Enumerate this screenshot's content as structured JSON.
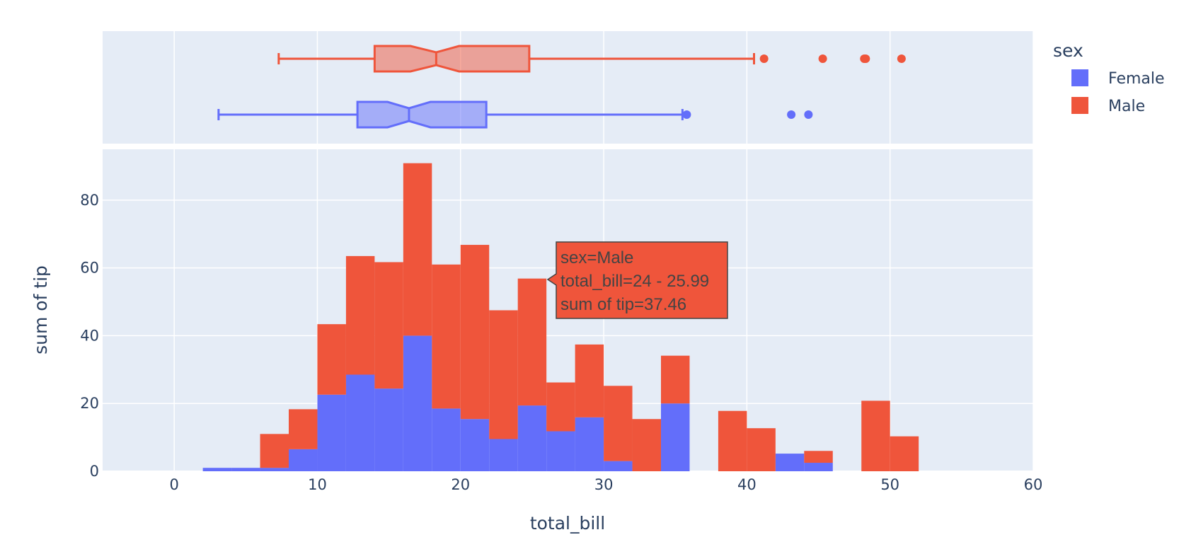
{
  "chart_data": {
    "type": "bar",
    "stacked": true,
    "xlabel": "total_bill",
    "ylabel": "sum of tip",
    "xlim": [
      -5,
      60
    ],
    "ylim": [
      0,
      95
    ],
    "x_ticks": [
      0,
      10,
      20,
      30,
      40,
      50,
      60
    ],
    "y_ticks": [
      0,
      20,
      40,
      60,
      80
    ],
    "grid": true,
    "bin_width": 2,
    "legend": {
      "title": "sex",
      "placement": "right",
      "entries": [
        "Female",
        "Male"
      ]
    },
    "colors": {
      "Female": "#636efa",
      "Male": "#ef553b",
      "plot_bg": "#e5ecf6",
      "grid": "#ffffff",
      "text": "#2a3f5f"
    },
    "series": [
      {
        "name": "Female",
        "bins": [
          2,
          4,
          6,
          8,
          10,
          12,
          14,
          16,
          18,
          20,
          22,
          24,
          26,
          28,
          30,
          34,
          42,
          44
        ],
        "values": [
          1.0,
          1.0,
          1.0,
          6.5,
          22.6,
          28.5,
          24.4,
          40.0,
          18.5,
          15.4,
          9.5,
          19.4,
          11.8,
          15.9,
          3.0,
          20.0,
          5.2,
          2.5
        ]
      },
      {
        "name": "Male",
        "bins": [
          6,
          8,
          10,
          12,
          14,
          16,
          18,
          20,
          22,
          24,
          26,
          28,
          30,
          32,
          34,
          38,
          40,
          44,
          48,
          50
        ],
        "values": [
          10.0,
          11.8,
          20.8,
          35.0,
          37.3,
          50.9,
          42.5,
          51.4,
          38.0,
          37.46,
          14.4,
          21.5,
          22.2,
          15.4,
          14.1,
          17.8,
          12.7,
          3.5,
          20.8,
          10.3
        ]
      }
    ],
    "boxplots": [
      {
        "name": "Male",
        "whisker_low": 7.3,
        "q1": 14.0,
        "median": 18.3,
        "q3": 24.8,
        "whisker_high": 40.5,
        "notch_low": 16.5,
        "notch_high": 19.9,
        "outliers": [
          41.2,
          45.3,
          48.2,
          48.3,
          50.8
        ]
      },
      {
        "name": "Female",
        "whisker_low": 3.1,
        "q1": 12.8,
        "median": 16.4,
        "q3": 21.8,
        "whisker_high": 35.5,
        "notch_low": 14.9,
        "notch_high": 17.9,
        "outliers": [
          35.8,
          43.1,
          44.3
        ]
      }
    ],
    "hover": {
      "lines": [
        "sex=Male",
        "total_bill=24 - 25.99",
        "sum of tip=37.46"
      ]
    }
  }
}
